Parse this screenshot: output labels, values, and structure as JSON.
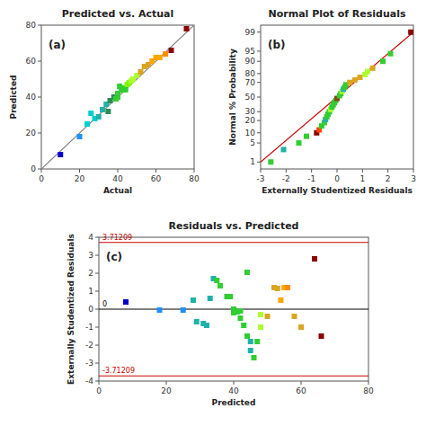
{
  "chart_data": [
    {
      "type": "scatter",
      "title": "Predicted vs. Actual",
      "xlabel": "Actual",
      "ylabel": "Predicted",
      "annotations": [
        "(a)"
      ],
      "marker": "square",
      "xlim": [
        0,
        80
      ],
      "ylim": [
        0,
        80
      ],
      "xticks": [
        0,
        20,
        40,
        60,
        80
      ],
      "yticks": [
        0,
        20,
        40,
        60,
        80
      ],
      "x": [
        10,
        20,
        24,
        26,
        28,
        30,
        32,
        34,
        35,
        36,
        38,
        39,
        40,
        40,
        41,
        42,
        42,
        43,
        44,
        44,
        45,
        46,
        47,
        48,
        50,
        52,
        54,
        56,
        58,
        60,
        62,
        65,
        68,
        76
      ],
      "values": [
        8,
        18,
        25,
        31,
        28,
        29,
        33,
        36,
        32,
        38,
        40,
        39,
        42,
        40,
        46,
        44,
        45,
        45,
        45,
        44,
        47,
        48,
        49,
        50,
        52,
        54,
        57,
        58,
        60,
        62,
        62,
        64,
        66,
        78
      ],
      "colors": [
        "#0000CD",
        "#1E90FF",
        "#00CED1",
        "#00CED1",
        "#00CED1",
        "#20B2AA",
        "#20B2AA",
        "#20B2AA",
        "#2E8B57",
        "#2E8B57",
        "#2E8B57",
        "#32CD32",
        "#32CD32",
        "#32CD32",
        "#32CD32",
        "#32CD32",
        "#32CD32",
        "#32CD32",
        "#32CD32",
        "#32CD32",
        "#7CFC00",
        "#7CFC00",
        "#ADFF2F",
        "#ADFF2F",
        "#ADFF2F",
        "#DAA520",
        "#DAA520",
        "#DAA520",
        "#FFA500",
        "#FFA500",
        "#FFA500",
        "#FF8C00",
        "#8B0000",
        "#8B0000"
      ],
      "reference_lines": [
        {
          "x": [
            0,
            80
          ],
          "values": [
            0,
            80
          ],
          "color": "#808080"
        }
      ]
    },
    {
      "type": "probability",
      "title": "Normal Plot of Residuals",
      "xlabel": "Externally Studentized Residuals",
      "ylabel": "Normal % Probability",
      "annotations": [
        "(b)"
      ],
      "marker": "square",
      "xlim": [
        -3,
        3
      ],
      "ylim": [
        0.5,
        99.5
      ],
      "xticks": [
        -3,
        -2,
        -1,
        0,
        1,
        2,
        3
      ],
      "yticks": [
        1,
        5,
        10,
        20,
        30,
        50,
        70,
        80,
        90,
        95,
        99
      ],
      "x": [
        -2.6,
        -2.1,
        -1.5,
        -1.2,
        -0.8,
        -0.7,
        -0.6,
        -0.5,
        -0.45,
        -0.4,
        -0.35,
        -0.3,
        -0.25,
        -0.2,
        -0.15,
        -0.1,
        -0.05,
        0.0,
        0.1,
        0.15,
        0.2,
        0.25,
        0.3,
        0.35,
        0.5,
        0.7,
        0.9,
        1.1,
        1.2,
        1.4,
        1.8,
        2.1,
        2.9
      ],
      "values": [
        1,
        3,
        5,
        8,
        10,
        12,
        15,
        18,
        21,
        24,
        27,
        30,
        33,
        36,
        39,
        42,
        45,
        48,
        52,
        55,
        58,
        61,
        64,
        67,
        70,
        73,
        76,
        79,
        82,
        85,
        90,
        94,
        99
      ],
      "colors": [
        "#32CD32",
        "#20B2AA",
        "#32CD32",
        "#32CD32",
        "#8B0000",
        "#FF4500",
        "#32CD32",
        "#32CD32",
        "#20B2AA",
        "#32CD32",
        "#32CD32",
        "#32CD32",
        "#ADFF2F",
        "#32CD32",
        "#32CD32",
        "#32CD32",
        "#32CD32",
        "#8B4513",
        "#32CD32",
        "#32CD32",
        "#ADFF2F",
        "#20B2AA",
        "#32CD32",
        "#32CD32",
        "#DAA520",
        "#DAA520",
        "#DAA520",
        "#ADFF2F",
        "#ADFF2F",
        "#DAA520",
        "#32CD32",
        "#32CD32",
        "#8B0000"
      ],
      "reference_lines": [
        {
          "x": [
            -3,
            3
          ],
          "values": [
            1,
            99
          ],
          "color": "#cc0000"
        }
      ]
    },
    {
      "type": "scatter",
      "title": "Residuals vs. Predicted",
      "xlabel": "Predicted",
      "ylabel": "Externally Studentized Residuals",
      "annotations": [
        "(c)"
      ],
      "marker": "square",
      "xlim": [
        0,
        80
      ],
      "ylim": [
        -4,
        4
      ],
      "xticks": [
        0,
        20,
        40,
        60,
        80
      ],
      "yticks": [
        -4,
        -3,
        -2,
        -1,
        0,
        1,
        2,
        3,
        4
      ],
      "x": [
        8,
        18,
        25,
        28,
        29,
        31,
        32,
        33,
        34,
        35,
        36,
        38,
        39,
        40,
        40,
        40,
        41,
        42,
        42,
        43,
        44,
        44,
        45,
        45,
        46,
        47,
        48,
        48,
        50,
        52,
        53,
        54,
        55,
        56,
        58,
        60,
        64,
        66
      ],
      "values": [
        0.4,
        -0.05,
        -0.05,
        0.5,
        -0.7,
        -0.8,
        -0.9,
        0.6,
        1.7,
        1.6,
        1.3,
        0.7,
        0.7,
        -0.1,
        0.0,
        -0.2,
        -0.15,
        -0.1,
        -0.5,
        -0.9,
        -1.5,
        2.05,
        -1.8,
        -2.3,
        -2.7,
        -1.8,
        -1.0,
        -0.3,
        -0.4,
        1.2,
        1.15,
        0.5,
        1.2,
        1.2,
        -0.4,
        -1.0,
        2.8,
        -1.5
      ],
      "colors": [
        "#0000CD",
        "#1E90FF",
        "#1E90FF",
        "#20B2AA",
        "#20B2AA",
        "#20B2AA",
        "#20B2AA",
        "#20B2AA",
        "#20B2AA",
        "#32CD32",
        "#32CD32",
        "#32CD32",
        "#32CD32",
        "#32CD32",
        "#32CD32",
        "#32CD32",
        "#32CD32",
        "#32CD32",
        "#32CD32",
        "#32CD32",
        "#32CD32",
        "#32CD32",
        "#20B2AA",
        "#20B2AA",
        "#32CD32",
        "#32CD32",
        "#ADFF2F",
        "#ADFF2F",
        "#DAA520",
        "#DAA520",
        "#DAA520",
        "#FFA500",
        "#FFA500",
        "#FF8C00",
        "#DAA520",
        "#DAA520",
        "#8B0000",
        "#8B0000"
      ],
      "reference_lines": [
        {
          "value": 3.71209,
          "label": "3.71209",
          "color": "#cc0000"
        },
        {
          "value": -3.71209,
          "label": "-3.71209",
          "color": "#cc0000"
        },
        {
          "value": 0.0,
          "label": "0",
          "color": "#000000"
        }
      ]
    }
  ]
}
